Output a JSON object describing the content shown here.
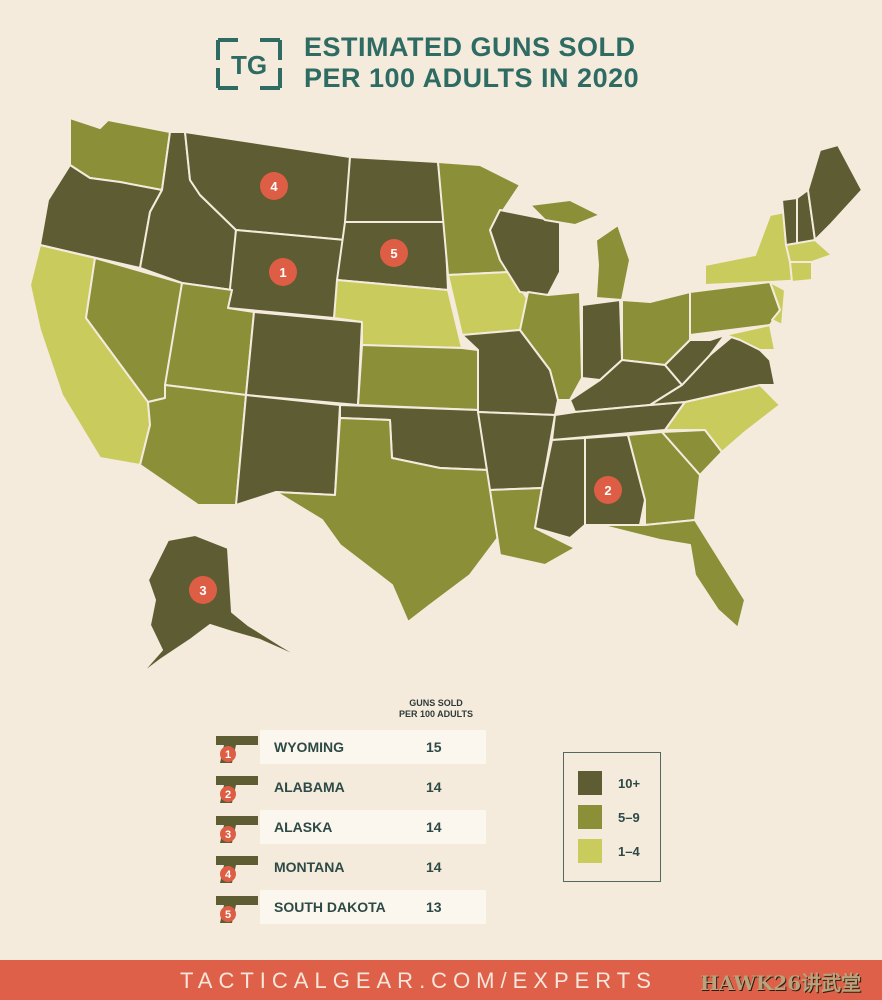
{
  "title": {
    "line1": "ESTIMATED GUNS SOLD",
    "line2": "PER 100 ADULTS IN 2020"
  },
  "logo": {
    "text": "TG",
    "color": "#2e6b63"
  },
  "colors": {
    "high": "#5e5c33",
    "mid": "#8a8f38",
    "low": "#c9cc5c",
    "marker": "#dd5e44",
    "background": "#f4ebdc"
  },
  "map_markers": [
    {
      "rank": "1",
      "state": "Wyoming"
    },
    {
      "rank": "2",
      "state": "Alabama"
    },
    {
      "rank": "3",
      "state": "Alaska"
    },
    {
      "rank": "4",
      "state": "Montana"
    },
    {
      "rank": "5",
      "state": "South Dakota"
    }
  ],
  "ranking": {
    "header_line1": "GUNS SOLD",
    "header_line2": "PER 100 ADULTS",
    "rows": [
      {
        "rank": "1",
        "state": "WYOMING",
        "value": "15"
      },
      {
        "rank": "2",
        "state": "ALABAMA",
        "value": "14"
      },
      {
        "rank": "3",
        "state": "ALASKA",
        "value": "14"
      },
      {
        "rank": "4",
        "state": "MONTANA",
        "value": "14"
      },
      {
        "rank": "5",
        "state": "SOUTH DAKOTA",
        "value": "13"
      }
    ]
  },
  "legend": [
    {
      "label": "10+",
      "color": "#5e5c33"
    },
    {
      "label": "5–9",
      "color": "#8a8f38"
    },
    {
      "label": "1–4",
      "color": "#c9cc5c"
    }
  ],
  "footer": {
    "text": "TACTICALGEAR.COM/EXPERTS"
  },
  "watermark": {
    "text": "HAWK26讲武堂"
  }
}
